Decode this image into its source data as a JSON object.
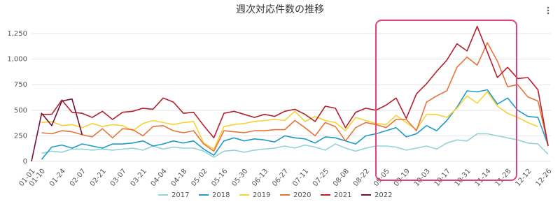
{
  "chart_data": {
    "type": "line",
    "title": "週次対応件数の推移",
    "categories": [
      "01-01",
      "01-10",
      null,
      "01-24",
      null,
      "02-07",
      null,
      "02-21",
      null,
      "03-07",
      null,
      "03-21",
      null,
      "04-04",
      null,
      "04-18",
      null,
      "05-02",
      null,
      "05-16",
      null,
      "05-30",
      null,
      "06-13",
      null,
      "06-27",
      null,
      "07-11",
      null,
      "07-25",
      null,
      "08-08",
      null,
      "08-22",
      null,
      "09-05",
      null,
      "09-19",
      null,
      "10-03",
      null,
      "10-17",
      null,
      "10-31",
      null,
      "11-14",
      null,
      "11-28",
      null,
      "12-12",
      null,
      "12-26"
    ],
    "series": [
      {
        "name": "2017",
        "color": "#93d3d3",
        "values": [
          null,
          80,
          100,
          90,
          120,
          120,
          110,
          120,
          110,
          120,
          130,
          110,
          150,
          120,
          140,
          130,
          130,
          100,
          40,
          100,
          110,
          90,
          110,
          120,
          130,
          150,
          130,
          160,
          140,
          110,
          170,
          130,
          100,
          130,
          150,
          150,
          140,
          110,
          130,
          150,
          120,
          180,
          210,
          200,
          270,
          270,
          250,
          230,
          210,
          180,
          170,
          70
        ]
      },
      {
        "name": "2018",
        "color": "#1f9bc8",
        "values": [
          null,
          20,
          140,
          160,
          130,
          170,
          150,
          130,
          170,
          170,
          180,
          200,
          150,
          170,
          200,
          180,
          200,
          120,
          60,
          200,
          230,
          200,
          220,
          210,
          190,
          250,
          230,
          220,
          180,
          240,
          230,
          200,
          170,
          250,
          270,
          300,
          330,
          240,
          270,
          350,
          300,
          400,
          530,
          690,
          680,
          700,
          560,
          620,
          500,
          440,
          430,
          160
        ]
      },
      {
        "name": "2019",
        "color": "#f7d237",
        "values": [
          null,
          380,
          390,
          350,
          360,
          330,
          370,
          340,
          360,
          350,
          300,
          370,
          400,
          380,
          360,
          380,
          390,
          180,
          120,
          340,
          360,
          370,
          390,
          400,
          410,
          400,
          490,
          390,
          440,
          400,
          380,
          300,
          430,
          400,
          370,
          360,
          450,
          380,
          310,
          460,
          460,
          430,
          520,
          640,
          570,
          680,
          540,
          470,
          430,
          380,
          340,
          null
        ]
      },
      {
        "name": "2020",
        "color": "#e8733a",
        "values": [
          null,
          280,
          270,
          300,
          290,
          260,
          240,
          320,
          230,
          320,
          310,
          250,
          340,
          350,
          300,
          280,
          300,
          170,
          100,
          300,
          290,
          280,
          300,
          300,
          310,
          310,
          400,
          330,
          250,
          380,
          340,
          200,
          330,
          380,
          360,
          330,
          410,
          410,
          300,
          580,
          640,
          690,
          920,
          1020,
          940,
          1160,
          980,
          730,
          750,
          630,
          590,
          160
        ]
      },
      {
        "name": "2021",
        "color": "#b3202d",
        "values": [
          null,
          460,
          460,
          600,
          480,
          470,
          430,
          490,
          410,
          480,
          490,
          520,
          510,
          620,
          580,
          470,
          480,
          350,
          230,
          470,
          490,
          460,
          430,
          460,
          440,
          490,
          510,
          460,
          390,
          540,
          520,
          330,
          480,
          520,
          500,
          550,
          620,
          420,
          660,
          760,
          880,
          990,
          1150,
          1080,
          1320,
          1070,
          820,
          920,
          810,
          820,
          700,
          150
        ]
      },
      {
        "name": "2022",
        "color": "#6e0f3c",
        "values": [
          0,
          470,
          350,
          590,
          610,
          260,
          null,
          null,
          null,
          null,
          null,
          null,
          null,
          null,
          null,
          null,
          null,
          null,
          null,
          null,
          null,
          null,
          null,
          null,
          null,
          null,
          null,
          null,
          null,
          null,
          null,
          null,
          null,
          null,
          null,
          null,
          null,
          null,
          null,
          null,
          null,
          null,
          null,
          null,
          null,
          null,
          null,
          null,
          null,
          null,
          null,
          null
        ]
      }
    ],
    "ylim": [
      0,
      1350
    ],
    "yticks": [
      0,
      250,
      500,
      750,
      {
        "value": 1000,
        "label": "1,000"
      },
      {
        "value": 1250,
        "label": "1,250"
      }
    ],
    "grid": true
  }
}
